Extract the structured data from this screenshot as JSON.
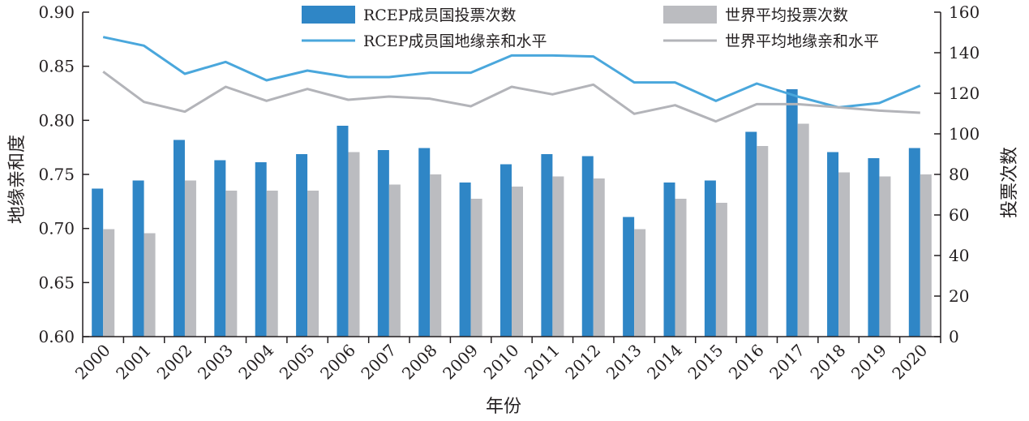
{
  "chart_data": {
    "type": "bar",
    "categories": [
      "2000",
      "2001",
      "2002",
      "2003",
      "2004",
      "2005",
      "2006",
      "2007",
      "2008",
      "2009",
      "2010",
      "2011",
      "2012",
      "2013",
      "2014",
      "2015",
      "2016",
      "2017",
      "2018",
      "2019",
      "2020"
    ],
    "series": [
      {
        "name": "RCEP成员国投票次数",
        "type": "bar",
        "axis": "right",
        "color": "#2f86c6",
        "values": [
          73,
          77,
          97,
          87,
          86,
          90,
          104,
          92,
          93,
          76,
          85,
          90,
          89,
          59,
          76,
          77,
          101,
          122,
          91,
          88,
          93
        ]
      },
      {
        "name": "世界平均投票次数",
        "type": "bar",
        "axis": "right",
        "color": "#bbbcc0",
        "values": [
          53,
          51,
          77,
          72,
          72,
          72,
          91,
          75,
          80,
          68,
          74,
          79,
          78,
          53,
          68,
          66,
          94,
          105,
          81,
          79,
          80
        ]
      },
      {
        "name": "RCEP成员国地缘亲和水平",
        "type": "line",
        "axis": "left",
        "color": "#4aa7dc",
        "values": [
          0.877,
          0.869,
          0.843,
          0.854,
          0.837,
          0.846,
          0.84,
          0.84,
          0.844,
          0.844,
          0.86,
          0.86,
          0.859,
          0.835,
          0.835,
          0.818,
          0.834,
          0.822,
          0.812,
          0.816,
          0.832
        ]
      },
      {
        "name": "世界平均地缘亲和水平",
        "type": "line",
        "axis": "left",
        "color": "#b3b4b9",
        "values": [
          0.845,
          0.817,
          0.808,
          0.831,
          0.818,
          0.829,
          0.819,
          0.822,
          0.82,
          0.813,
          0.831,
          0.824,
          0.833,
          0.806,
          0.814,
          0.799,
          0.815,
          0.815,
          0.812,
          0.809,
          0.807
        ]
      }
    ],
    "xlabel": "年份",
    "ylabel_left": "地缘亲和度",
    "ylabel_right": "投票次数",
    "ylim_left": [
      0.6,
      0.9
    ],
    "ylim_right": [
      0,
      160
    ],
    "yticks_left": [
      "0.60",
      "0.65",
      "0.70",
      "0.75",
      "0.80",
      "0.85",
      "0.90"
    ],
    "yticks_right": [
      "0",
      "20",
      "40",
      "60",
      "80",
      "100",
      "120",
      "140",
      "160"
    ],
    "grid": false,
    "legend_position": "top"
  }
}
